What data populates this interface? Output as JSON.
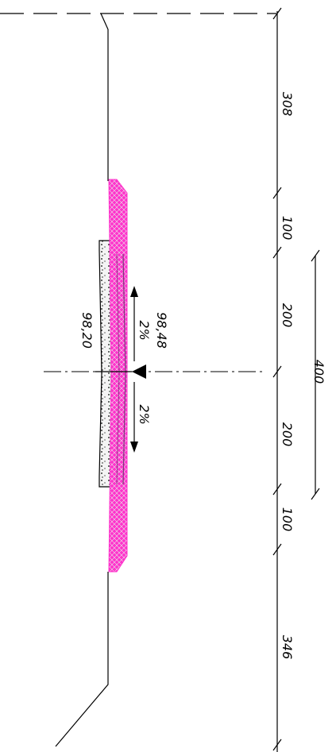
{
  "drawing": {
    "colors": {
      "line": "#000000",
      "pavement_fill": "#ff33cc",
      "concrete_fill": "#f4f4f4"
    },
    "dimensions": {
      "left_verge": "308",
      "left_shoulder": "100",
      "left_lane": "200",
      "right_lane": "200",
      "right_shoulder": "100",
      "right_verge": "346",
      "carriageway": "400"
    },
    "levels": {
      "axis_level": "98,48",
      "slab_level": "98,20"
    },
    "slopes": {
      "left_lane_slope": "2%",
      "right_lane_slope": "2%"
    }
  }
}
